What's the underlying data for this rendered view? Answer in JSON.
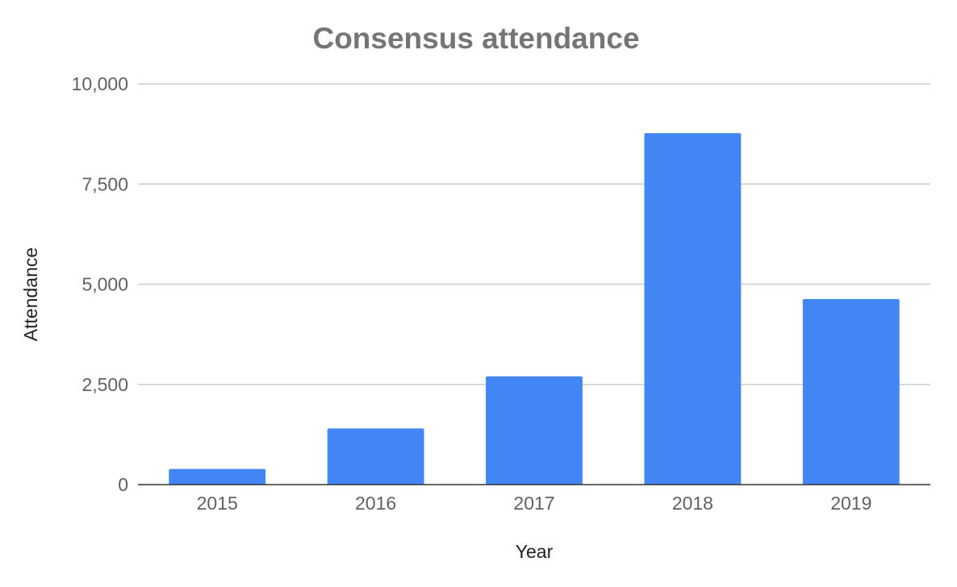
{
  "chart_data": {
    "type": "bar",
    "title": "Consensus attendance",
    "xlabel": "Year",
    "ylabel": "Attendance",
    "categories": [
      "2015",
      "2016",
      "2017",
      "2018",
      "2019"
    ],
    "values": [
      390,
      1400,
      2700,
      8770,
      4630
    ],
    "ylim": [
      0,
      10000
    ],
    "yticks": [
      0,
      2500,
      5000,
      7500,
      10000
    ],
    "ytick_labels": [
      "0",
      "2,500",
      "5,000",
      "7,500",
      "10,000"
    ],
    "grid": true,
    "legend": "none",
    "colors": {
      "bar": "#4285f4",
      "grid": "#cccccc",
      "baseline": "#333333",
      "title": "#757575",
      "tick_text": "#616161",
      "axis_text": "#222222"
    }
  }
}
